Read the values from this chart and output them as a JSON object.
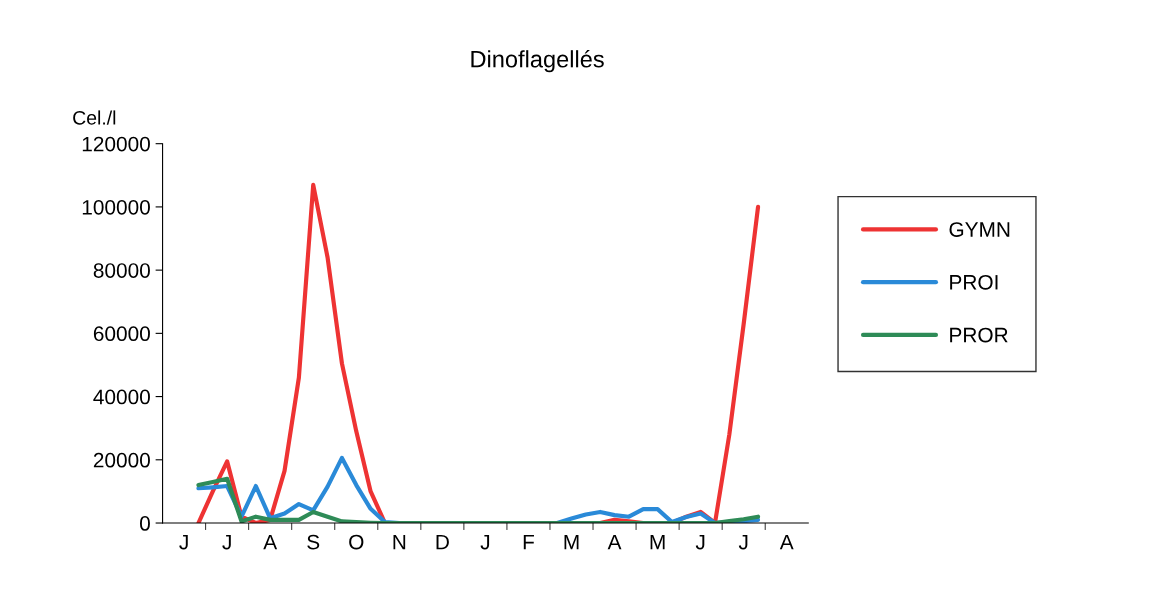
{
  "chart_data": {
    "type": "line",
    "title": "Dinoflagellés",
    "ylabel": "Cel./l",
    "categories": [
      null,
      "J",
      null,
      null,
      "J",
      null,
      null,
      "A",
      null,
      null,
      "S",
      null,
      null,
      "O",
      null,
      null,
      "N",
      null,
      null,
      "D",
      null,
      null,
      "J",
      null,
      null,
      "F",
      null,
      null,
      "M",
      null,
      null,
      "A",
      null,
      null,
      "M",
      null,
      null,
      "J",
      null,
      null,
      "J",
      null,
      null,
      "A",
      null
    ],
    "ylim": [
      0,
      120000
    ],
    "yticks": [
      0,
      20000,
      40000,
      60000,
      80000,
      100000,
      120000
    ],
    "grid": false,
    "legend": "right",
    "marker": "none",
    "line_style": "solid",
    "series": [
      {
        "name": "GYMN",
        "color": "#ee3333",
        "values": [
          null,
          null,
          0,
          10000,
          19500,
          2000,
          0,
          1000,
          16500,
          46000,
          107000,
          84000,
          50500,
          29000,
          10000,
          0,
          0,
          0,
          0,
          0,
          0,
          0,
          0,
          0,
          0,
          0,
          0,
          0,
          0,
          0,
          0,
          1000,
          500,
          0,
          0,
          0,
          2000,
          3500,
          0,
          28000,
          63000,
          100000,
          null,
          null,
          null
        ]
      },
      {
        "name": "PROI",
        "color": "#2a8ad8",
        "values": [
          null,
          null,
          11000,
          11300,
          11700,
          2000,
          11700,
          1500,
          3000,
          6000,
          4000,
          11500,
          20600,
          12000,
          4500,
          300,
          0,
          0,
          0,
          0,
          0,
          0,
          0,
          0,
          0,
          0,
          0,
          0,
          1400,
          2700,
          3500,
          2500,
          2000,
          4400,
          4400,
          300,
          1900,
          3000,
          0,
          300,
          600,
          1000,
          null,
          null,
          null
        ]
      },
      {
        "name": "PROR",
        "color": "#2e8b57",
        "values": [
          null,
          null,
          12000,
          13000,
          14000,
          500,
          2000,
          1000,
          1000,
          1000,
          3500,
          2000,
          500,
          300,
          100,
          0,
          0,
          0,
          0,
          0,
          0,
          0,
          0,
          0,
          0,
          0,
          0,
          0,
          0,
          0,
          0,
          0,
          0,
          0,
          0,
          0,
          0,
          0,
          0,
          600,
          1200,
          2000,
          null,
          null,
          null
        ]
      }
    ]
  }
}
